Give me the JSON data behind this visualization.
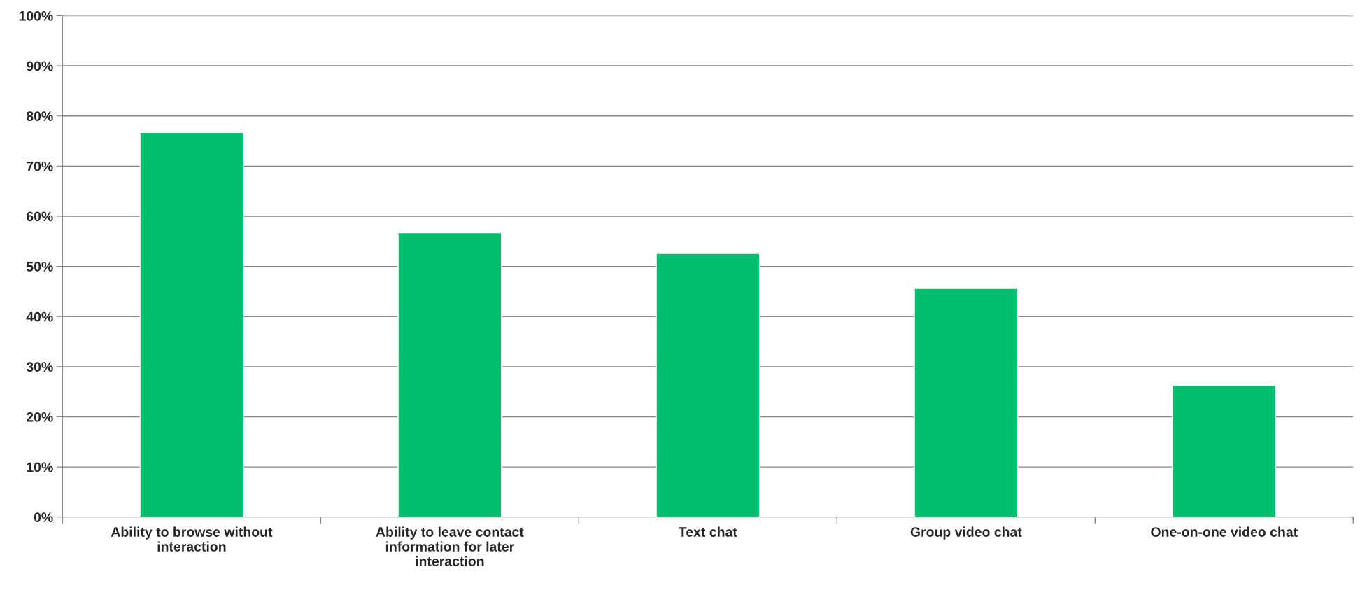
{
  "chart_data": {
    "type": "bar",
    "categories": [
      "Ability to browse without interaction",
      "Ability to leave contact information for later interaction",
      "Text chat",
      "Group video chat",
      "One-on-one video chat"
    ],
    "values": [
      76.7,
      56.7,
      52.6,
      45.6,
      26.3
    ],
    "color": "#00bf6f",
    "ylim": [
      0,
      100
    ],
    "yticks": [
      {
        "value": 0,
        "label": "0%"
      },
      {
        "value": 10,
        "label": "10%"
      },
      {
        "value": 20,
        "label": "20%"
      },
      {
        "value": 30,
        "label": "30%"
      },
      {
        "value": 40,
        "label": "40%"
      },
      {
        "value": 50,
        "label": "50%"
      },
      {
        "value": 60,
        "label": "60%"
      },
      {
        "value": 70,
        "label": "70%"
      },
      {
        "value": 80,
        "label": "80%"
      },
      {
        "value": 90,
        "label": "90%"
      },
      {
        "value": 100,
        "label": "100%"
      }
    ],
    "grid": "y"
  }
}
